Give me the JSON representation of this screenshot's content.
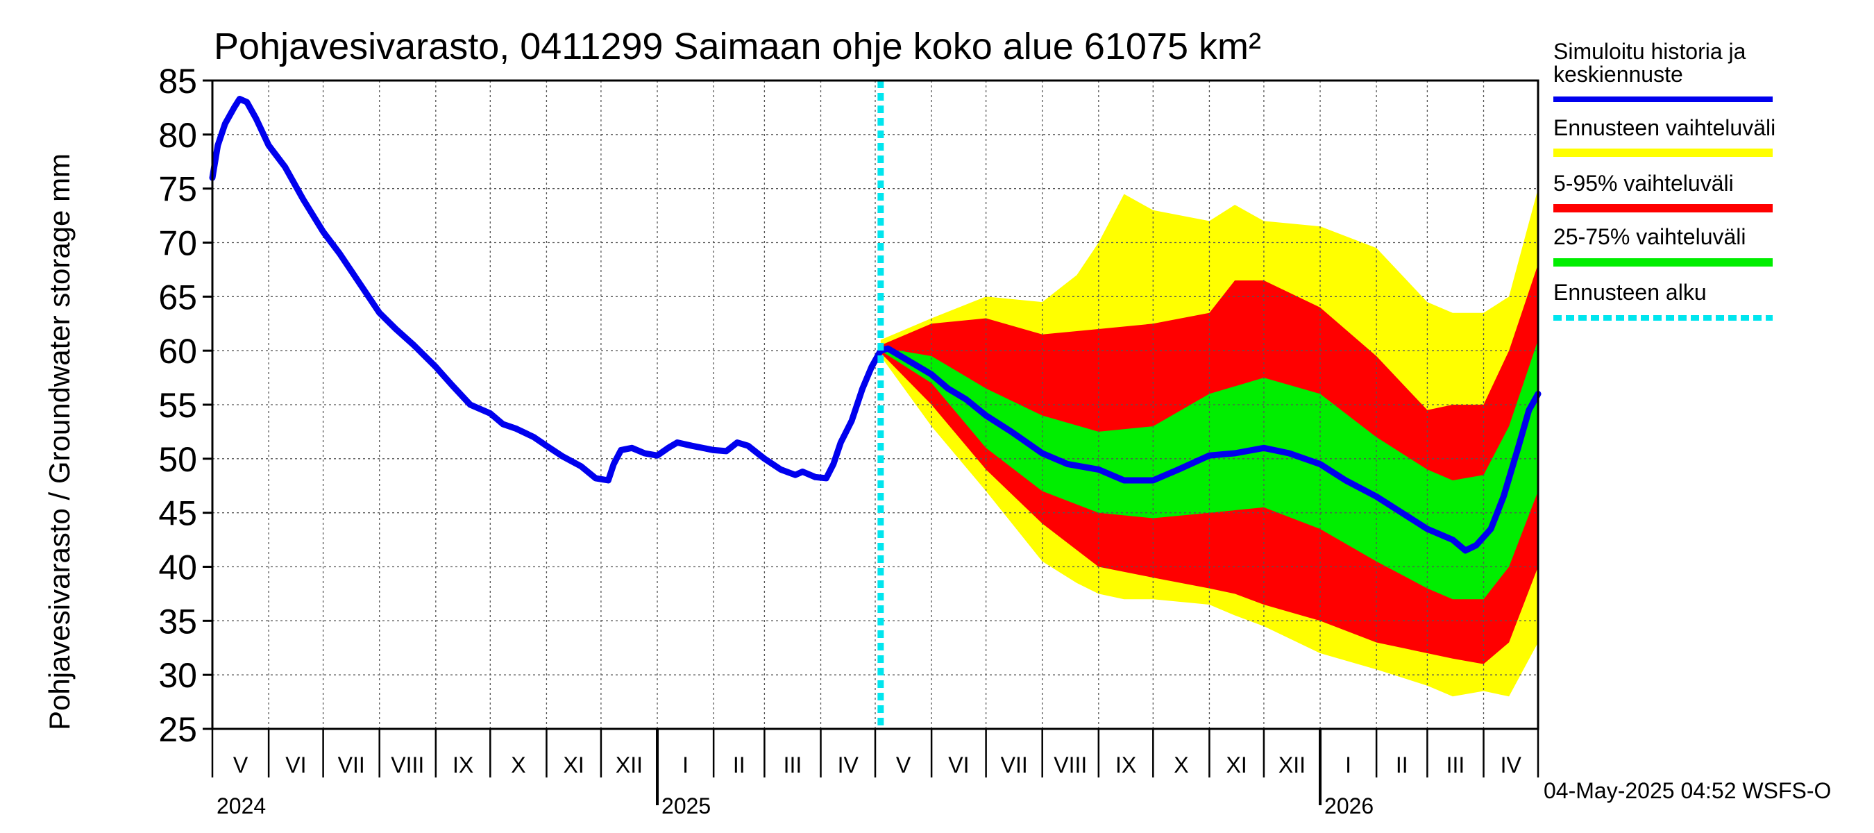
{
  "chart_data": {
    "type": "area",
    "title": "Pohjavesivarasto, 0411299 Saimaan ohje koko alue 61075 km²",
    "ylabel": "Pohjavesivarasto / Groundwater storage   mm",
    "ylim": [
      25,
      85
    ],
    "yticks": [
      25,
      30,
      35,
      40,
      45,
      50,
      55,
      60,
      65,
      70,
      75,
      80,
      85
    ],
    "grid": true,
    "legend_position": "right",
    "forecast_start": "2025-05-04",
    "footer": "04-May-2025 04:52 WSFS-O",
    "month_ticks": [
      {
        "label": "V",
        "date": "2024-05-01"
      },
      {
        "label": "VI",
        "date": "2024-06-01"
      },
      {
        "label": "VII",
        "date": "2024-07-01"
      },
      {
        "label": "VIII",
        "date": "2024-08-01"
      },
      {
        "label": "IX",
        "date": "2024-09-01"
      },
      {
        "label": "X",
        "date": "2024-10-01"
      },
      {
        "label": "XI",
        "date": "2024-11-01"
      },
      {
        "label": "XII",
        "date": "2024-12-01"
      },
      {
        "label": "I",
        "date": "2025-01-01"
      },
      {
        "label": "II",
        "date": "2025-02-01"
      },
      {
        "label": "III",
        "date": "2025-03-01"
      },
      {
        "label": "IV",
        "date": "2025-04-01"
      },
      {
        "label": "V",
        "date": "2025-05-01"
      },
      {
        "label": "VI",
        "date": "2025-06-01"
      },
      {
        "label": "VII",
        "date": "2025-07-01"
      },
      {
        "label": "VIII",
        "date": "2025-08-01"
      },
      {
        "label": "IX",
        "date": "2025-09-01"
      },
      {
        "label": "X",
        "date": "2025-10-01"
      },
      {
        "label": "XI",
        "date": "2025-11-01"
      },
      {
        "label": "XII",
        "date": "2025-12-01"
      },
      {
        "label": "I",
        "date": "2026-01-01"
      },
      {
        "label": "II",
        "date": "2026-02-01"
      },
      {
        "label": "III",
        "date": "2026-03-01"
      },
      {
        "label": "IV",
        "date": "2026-04-01"
      }
    ],
    "x_end": "2026-05-01",
    "year_labels": [
      {
        "label": "2024",
        "date": "2024-05-01"
      },
      {
        "label": "2025",
        "date": "2025-01-01"
      },
      {
        "label": "2026",
        "date": "2026-01-01"
      }
    ],
    "legend": [
      {
        "label": "Simuloitu historia ja keskiennuste",
        "color": "#0000ee",
        "style": "line"
      },
      {
        "label": "Ennusteen vaihteluväli",
        "color": "#ffff00",
        "style": "band"
      },
      {
        "label": "5-95% vaihteluväli",
        "color": "#ff0000",
        "style": "band"
      },
      {
        "label": "25-75% vaihteluväli",
        "color": "#00ee00",
        "style": "band"
      },
      {
        "label": "Ennusteen alku",
        "color": "#00e5ee",
        "style": "dashed"
      }
    ],
    "series": [
      {
        "name": "Simuloitu historia ja keskiennuste",
        "color": "#0000ee",
        "points": [
          [
            "2024-05-01",
            76
          ],
          [
            "2024-05-04",
            79
          ],
          [
            "2024-05-08",
            81
          ],
          [
            "2024-05-13",
            82.5
          ],
          [
            "2024-05-16",
            83.3
          ],
          [
            "2024-05-20",
            83
          ],
          [
            "2024-05-25",
            81.5
          ],
          [
            "2024-06-01",
            79
          ],
          [
            "2024-06-10",
            77
          ],
          [
            "2024-06-20",
            74
          ],
          [
            "2024-07-01",
            71
          ],
          [
            "2024-07-10",
            69
          ],
          [
            "2024-07-20",
            66.5
          ],
          [
            "2024-08-01",
            63.5
          ],
          [
            "2024-08-10",
            62
          ],
          [
            "2024-08-20",
            60.5
          ],
          [
            "2024-09-01",
            58.5
          ],
          [
            "2024-09-10",
            56.8
          ],
          [
            "2024-09-20",
            55
          ],
          [
            "2024-10-01",
            54.2
          ],
          [
            "2024-10-08",
            53.2
          ],
          [
            "2024-10-15",
            52.8
          ],
          [
            "2024-10-25",
            52
          ],
          [
            "2024-11-01",
            51.2
          ],
          [
            "2024-11-10",
            50.2
          ],
          [
            "2024-11-20",
            49.3
          ],
          [
            "2024-11-28",
            48.2
          ],
          [
            "2024-12-05",
            48
          ],
          [
            "2024-12-08",
            49.5
          ],
          [
            "2024-12-12",
            50.8
          ],
          [
            "2024-12-18",
            51
          ],
          [
            "2024-12-25",
            50.5
          ],
          [
            "2025-01-01",
            50.3
          ],
          [
            "2025-01-07",
            51
          ],
          [
            "2025-01-12",
            51.5
          ],
          [
            "2025-01-20",
            51.2
          ],
          [
            "2025-02-01",
            50.8
          ],
          [
            "2025-02-08",
            50.7
          ],
          [
            "2025-02-14",
            51.5
          ],
          [
            "2025-02-20",
            51.2
          ],
          [
            "2025-03-01",
            50
          ],
          [
            "2025-03-10",
            49
          ],
          [
            "2025-03-18",
            48.5
          ],
          [
            "2025-03-22",
            48.8
          ],
          [
            "2025-03-29",
            48.3
          ],
          [
            "2025-04-04",
            48.2
          ],
          [
            "2025-04-08",
            49.5
          ],
          [
            "2025-04-12",
            51.5
          ],
          [
            "2025-04-18",
            53.5
          ],
          [
            "2025-04-24",
            56.5
          ],
          [
            "2025-04-29",
            58.5
          ],
          [
            "2025-05-04",
            60
          ],
          [
            "2025-05-08",
            60.2
          ],
          [
            "2025-05-15",
            59.5
          ],
          [
            "2025-05-25",
            58.5
          ],
          [
            "2025-06-01",
            57.8
          ],
          [
            "2025-06-10",
            56.5
          ],
          [
            "2025-06-20",
            55.5
          ],
          [
            "2025-07-01",
            54
          ],
          [
            "2025-07-15",
            52.5
          ],
          [
            "2025-08-01",
            50.5
          ],
          [
            "2025-08-15",
            49.5
          ],
          [
            "2025-09-01",
            49
          ],
          [
            "2025-09-15",
            48
          ],
          [
            "2025-10-01",
            48
          ],
          [
            "2025-10-15",
            49
          ],
          [
            "2025-11-01",
            50.3
          ],
          [
            "2025-11-15",
            50.5
          ],
          [
            "2025-12-01",
            51
          ],
          [
            "2025-12-15",
            50.5
          ],
          [
            "2026-01-01",
            49.5
          ],
          [
            "2026-01-15",
            48
          ],
          [
            "2026-02-01",
            46.5
          ],
          [
            "2026-02-15",
            45
          ],
          [
            "2026-03-01",
            43.5
          ],
          [
            "2026-03-15",
            42.5
          ],
          [
            "2026-03-22",
            41.5
          ],
          [
            "2026-03-28",
            42
          ],
          [
            "2026-04-05",
            43.5
          ],
          [
            "2026-04-12",
            46.5
          ],
          [
            "2026-04-20",
            51
          ],
          [
            "2026-04-26",
            54.5
          ],
          [
            "2026-05-01",
            56
          ]
        ]
      }
    ],
    "bands": [
      {
        "name": "Ennusteen vaihteluväli",
        "color": "#ffff00",
        "x": [
          "2025-05-04",
          "2025-06-01",
          "2025-07-01",
          "2025-08-01",
          "2025-08-20",
          "2025-09-01",
          "2025-09-15",
          "2025-10-01",
          "2025-11-01",
          "2025-11-15",
          "2025-12-01",
          "2026-01-01",
          "2026-02-01",
          "2026-03-01",
          "2026-03-15",
          "2026-04-01",
          "2026-04-15",
          "2026-05-01"
        ],
        "upper": [
          61,
          63,
          65,
          64.5,
          67,
          70,
          74.5,
          73,
          72,
          73.5,
          72,
          71.5,
          69.5,
          64.5,
          63.5,
          63.5,
          65,
          75
        ],
        "lower": [
          59.5,
          53,
          47,
          40.5,
          38.5,
          37.5,
          37,
          37,
          36.5,
          35.5,
          34.5,
          32,
          30.5,
          29,
          28,
          28.5,
          28,
          33
        ]
      },
      {
        "name": "5-95% vaihteluväli",
        "color": "#ff0000",
        "x": [
          "2025-05-04",
          "2025-06-01",
          "2025-07-01",
          "2025-08-01",
          "2025-09-01",
          "2025-10-01",
          "2025-11-01",
          "2025-11-15",
          "2025-12-01",
          "2026-01-01",
          "2026-02-01",
          "2026-03-01",
          "2026-03-15",
          "2026-04-01",
          "2026-04-15",
          "2026-05-01"
        ],
        "upper": [
          60.5,
          62.5,
          63,
          61.5,
          62,
          62.5,
          63.5,
          66.5,
          66.5,
          64,
          59.5,
          54.5,
          55,
          55,
          60,
          68
        ],
        "lower": [
          59.8,
          55,
          49,
          44,
          40,
          39,
          38,
          37.5,
          36.5,
          35,
          33,
          32,
          31.5,
          31,
          33,
          40
        ]
      },
      {
        "name": "25-75% vaihteluväli",
        "color": "#00ee00",
        "x": [
          "2025-05-04",
          "2025-06-01",
          "2025-07-01",
          "2025-08-01",
          "2025-09-01",
          "2025-10-01",
          "2025-11-01",
          "2025-12-01",
          "2026-01-01",
          "2026-02-01",
          "2026-03-01",
          "2026-03-15",
          "2026-04-01",
          "2026-04-15",
          "2026-05-01"
        ],
        "upper": [
          60.3,
          59.5,
          56.5,
          54,
          52.5,
          53,
          56,
          57.5,
          56,
          52,
          49,
          48,
          48.5,
          53,
          61
        ],
        "lower": [
          60,
          57,
          51,
          47,
          45,
          44.5,
          45,
          45.5,
          43.5,
          40.5,
          38,
          37,
          37,
          40,
          47
        ]
      }
    ]
  }
}
